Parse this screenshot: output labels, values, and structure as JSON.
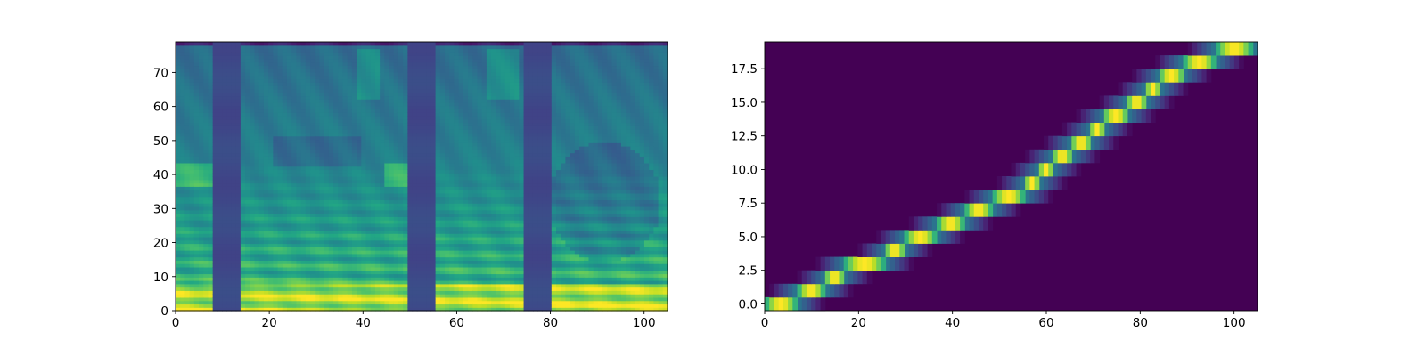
{
  "chart_data": [
    {
      "type": "heatmap",
      "title": "",
      "xlabel": "",
      "ylabel": "",
      "xlim": [
        0,
        105
      ],
      "ylim": [
        0,
        79
      ],
      "colormap": "viridis",
      "xticks": [
        0,
        20,
        40,
        60,
        80,
        100
      ],
      "xtick_labels": [
        "0",
        "20",
        "40",
        "60",
        "80",
        "100"
      ],
      "yticks": [
        0,
        10,
        20,
        30,
        40,
        50,
        60,
        70
      ],
      "ytick_labels": [
        "0",
        "10",
        "20",
        "30",
        "40",
        "50",
        "60",
        "70"
      ],
      "description_values": {
        "low_energy_columns": [
          [
            8,
            13
          ],
          [
            50,
            55
          ],
          [
            75,
            80
          ]
        ],
        "formant_columns": [
          [
            0,
            8
          ],
          [
            14,
            44
          ],
          [
            45,
            50
          ],
          [
            56,
            75
          ],
          [
            81,
            105
          ]
        ]
      }
    },
    {
      "type": "heatmap",
      "title": "",
      "xlabel": "",
      "ylabel": "",
      "xlim": [
        0,
        105
      ],
      "ylim": [
        -0.5,
        19.5
      ],
      "colormap": "viridis",
      "xticks": [
        0,
        20,
        40,
        60,
        80,
        100
      ],
      "xtick_labels": [
        "0",
        "20",
        "40",
        "60",
        "80",
        "100"
      ],
      "yticks": [
        0.0,
        2.5,
        5.0,
        7.5,
        10.0,
        12.5,
        15.0,
        17.5
      ],
      "ytick_labels": [
        "0.0",
        "2.5",
        "5.0",
        "7.5",
        "10.0",
        "12.5",
        "15.0",
        "17.5"
      ],
      "alignment_path": [
        {
          "row": 0,
          "x_start": 0,
          "x_end": 7
        },
        {
          "row": 1,
          "x_start": 7,
          "x_end": 13
        },
        {
          "row": 2,
          "x_start": 13,
          "x_end": 17
        },
        {
          "row": 3,
          "x_start": 17,
          "x_end": 26
        },
        {
          "row": 4,
          "x_start": 26,
          "x_end": 30
        },
        {
          "row": 5,
          "x_start": 30,
          "x_end": 37
        },
        {
          "row": 6,
          "x_start": 37,
          "x_end": 43
        },
        {
          "row": 7,
          "x_start": 43,
          "x_end": 49
        },
        {
          "row": 8,
          "x_start": 49,
          "x_end": 56
        },
        {
          "row": 9,
          "x_start": 56,
          "x_end": 59
        },
        {
          "row": 10,
          "x_start": 59,
          "x_end": 62
        },
        {
          "row": 11,
          "x_start": 62,
          "x_end": 66
        },
        {
          "row": 12,
          "x_start": 66,
          "x_end": 70
        },
        {
          "row": 13,
          "x_start": 70,
          "x_end": 73
        },
        {
          "row": 14,
          "x_start": 73,
          "x_end": 78
        },
        {
          "row": 15,
          "x_start": 78,
          "x_end": 82
        },
        {
          "row": 16,
          "x_start": 82,
          "x_end": 85
        },
        {
          "row": 17,
          "x_start": 85,
          "x_end": 90
        },
        {
          "row": 18,
          "x_start": 90,
          "x_end": 97
        },
        {
          "row": 19,
          "x_start": 97,
          "x_end": 105
        }
      ]
    }
  ]
}
